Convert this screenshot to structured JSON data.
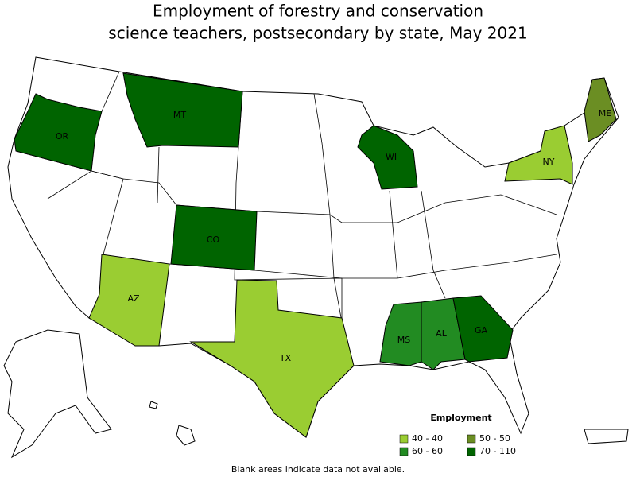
{
  "title_lines": [
    "Employment of forestry and conservation",
    "science teachers, postsecondary by state, May 2021"
  ],
  "legend": {
    "title": "Employment",
    "items": [
      {
        "label": "40 - 40",
        "color": "#9acd32"
      },
      {
        "label": "50 - 50",
        "color": "#6b8e23"
      },
      {
        "label": "60 - 60",
        "color": "#228b22"
      },
      {
        "label": "70 - 110",
        "color": "#006400"
      }
    ]
  },
  "states": [
    {
      "label": "OR",
      "bin": 3
    },
    {
      "label": "MT",
      "bin": 3
    },
    {
      "label": "WI",
      "bin": 3
    },
    {
      "label": "CO",
      "bin": 3
    },
    {
      "label": "ME",
      "bin": 1
    },
    {
      "label": "NY",
      "bin": 0
    },
    {
      "label": "AZ",
      "bin": 0
    },
    {
      "label": "TX",
      "bin": 0
    },
    {
      "label": "MS",
      "bin": 2
    },
    {
      "label": "AL",
      "bin": 2
    },
    {
      "label": "GA",
      "bin": 3
    }
  ],
  "note": "Blank areas indicate data not available."
}
